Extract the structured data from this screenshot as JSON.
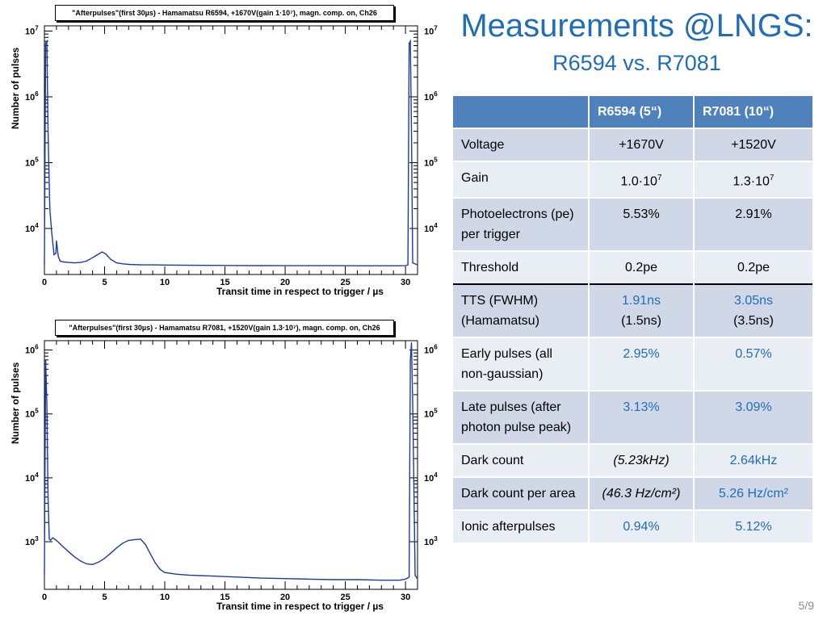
{
  "slide": {
    "title": "Measurements @LNGS:",
    "subtitle": "R6594 vs. R7081",
    "page": "5/9"
  },
  "chart_data": [
    {
      "type": "line",
      "title": "\"Afterpulses\"(first 30µs) - Hamamatsu R6594, +1670V(gain 1·10⁷), magn. comp. on, Ch26",
      "xlabel": "Transit time in respect to trigger / µs",
      "ylabel": "Number of pulses",
      "yscale": "log",
      "xlim": [
        0,
        31
      ],
      "ylim": [
        2000,
        12000000
      ],
      "x_ticks": [
        "0",
        "5",
        "10",
        "15",
        "20",
        "25",
        "30"
      ],
      "y_ticks": [
        {
          "base": "10",
          "exp": "4",
          "value": 10000
        },
        {
          "base": "10",
          "exp": "5",
          "value": 100000
        },
        {
          "base": "10",
          "exp": "6",
          "value": 1000000
        },
        {
          "base": "10",
          "exp": "7",
          "value": 10000000
        }
      ],
      "line_color": "#1c3aa8",
      "series": [
        {
          "x": [
            0.0,
            0.1,
            0.2,
            0.3,
            0.45,
            0.6,
            0.8,
            0.95,
            1.0,
            1.05,
            1.15,
            1.3,
            1.6,
            2.0,
            2.5,
            3.0,
            3.5,
            4.0,
            4.5,
            4.8,
            5.1,
            5.5,
            6.0,
            6.5,
            7.0,
            8.0,
            9.0,
            10.0,
            12.0,
            14.0,
            16.0,
            18.0,
            20.0,
            22.0,
            24.0,
            26.0,
            28.0,
            29.5,
            30.0,
            30.2,
            30.3,
            30.4,
            30.5,
            30.6,
            31.0
          ],
          "y": [
            2800,
            6500000,
            7000000,
            300000,
            20000,
            9000,
            4000,
            4200,
            6500,
            5500,
            3800,
            3200,
            3100,
            3050,
            3000,
            3050,
            3200,
            3600,
            4100,
            4400,
            4100,
            3400,
            3000,
            2900,
            2850,
            2800,
            2800,
            2780,
            2760,
            2750,
            2740,
            2730,
            2720,
            2720,
            2720,
            2710,
            2710,
            2710,
            2720,
            2800,
            6500000,
            7000000,
            300000,
            3000,
            2800
          ]
        }
      ]
    },
    {
      "type": "line",
      "title": "\"Afterpulses\"(first 30µs) - Hamamatsu R7081, +1520V(gain 1.3·10⁷), magn. comp. on, Ch26",
      "xlabel": "Transit time in respect to trigger / µs",
      "ylabel": "Number of pulses",
      "yscale": "log",
      "xlim": [
        0,
        31
      ],
      "ylim": [
        180,
        1400000
      ],
      "x_ticks": [
        "0",
        "5",
        "10",
        "15",
        "20",
        "25",
        "30"
      ],
      "y_ticks": [
        {
          "base": "10",
          "exp": "3",
          "value": 1000
        },
        {
          "base": "10",
          "exp": "4",
          "value": 10000
        },
        {
          "base": "10",
          "exp": "5",
          "value": 100000
        },
        {
          "base": "10",
          "exp": "6",
          "value": 1000000
        }
      ],
      "line_color": "#1c3aa8",
      "series": [
        {
          "x": [
            0.0,
            0.1,
            0.2,
            0.3,
            0.4,
            0.5,
            0.7,
            1.0,
            1.5,
            2.0,
            2.5,
            3.0,
            3.5,
            4.0,
            4.5,
            5.0,
            5.5,
            6.0,
            6.5,
            7.0,
            7.5,
            8.0,
            8.4,
            8.8,
            9.2,
            9.6,
            10.0,
            11.0,
            12.0,
            14.0,
            16.0,
            18.0,
            20.0,
            22.0,
            24.0,
            26.0,
            28.0,
            29.5,
            30.0,
            30.3,
            30.4,
            30.5,
            30.6,
            30.8,
            31.0
          ],
          "y": [
            300,
            700000,
            150000,
            5000,
            1100,
            1050,
            1150,
            1050,
            850,
            700,
            580,
            500,
            450,
            440,
            480,
            550,
            660,
            800,
            950,
            1050,
            1080,
            1100,
            900,
            650,
            470,
            370,
            330,
            310,
            300,
            290,
            280,
            270,
            265,
            260,
            255,
            255,
            250,
            250,
            260,
            280,
            700000,
            1300000,
            150000,
            300,
            260
          ]
        }
      ]
    }
  ],
  "table": {
    "headers": [
      "",
      "R6594 (5“)",
      "R7081  (10“)"
    ],
    "rows": [
      {
        "label": "Voltage",
        "a": "+1670V",
        "b": "+1520V"
      },
      {
        "label": "Gain",
        "a_base": "1.0·10",
        "a_exp": "7",
        "b_base": "1.3·10",
        "b_exp": "7"
      },
      {
        "label": "Photoelectrons (pe) per trigger",
        "a": "5.53%",
        "b": "2.91%"
      },
      {
        "label": "Threshold",
        "a": "0.2pe",
        "b": "0.2pe"
      },
      {
        "label": "TTS (FWHM) (Hamamatsu)",
        "a": "1.91ns",
        "a2": "(1.5ns)",
        "b": "3.05ns",
        "b2": "(3.5ns)"
      },
      {
        "label": "Early pulses (all non-gaussian)",
        "a": "2.95%",
        "b": "0.57%"
      },
      {
        "label": "Late pulses (after photon pulse peak)",
        "a": "3.13%",
        "b": "3.09%"
      },
      {
        "label": "Dark count",
        "a": "(5.23kHz)",
        "b": "2.64kHz"
      },
      {
        "label": "Dark count per area",
        "a": "(46.3 Hz/cm²)",
        "b": "5.26 Hz/cm²"
      },
      {
        "label": "Ionic afterpulses",
        "a": "0.94%",
        "b": "5.12%"
      }
    ]
  }
}
